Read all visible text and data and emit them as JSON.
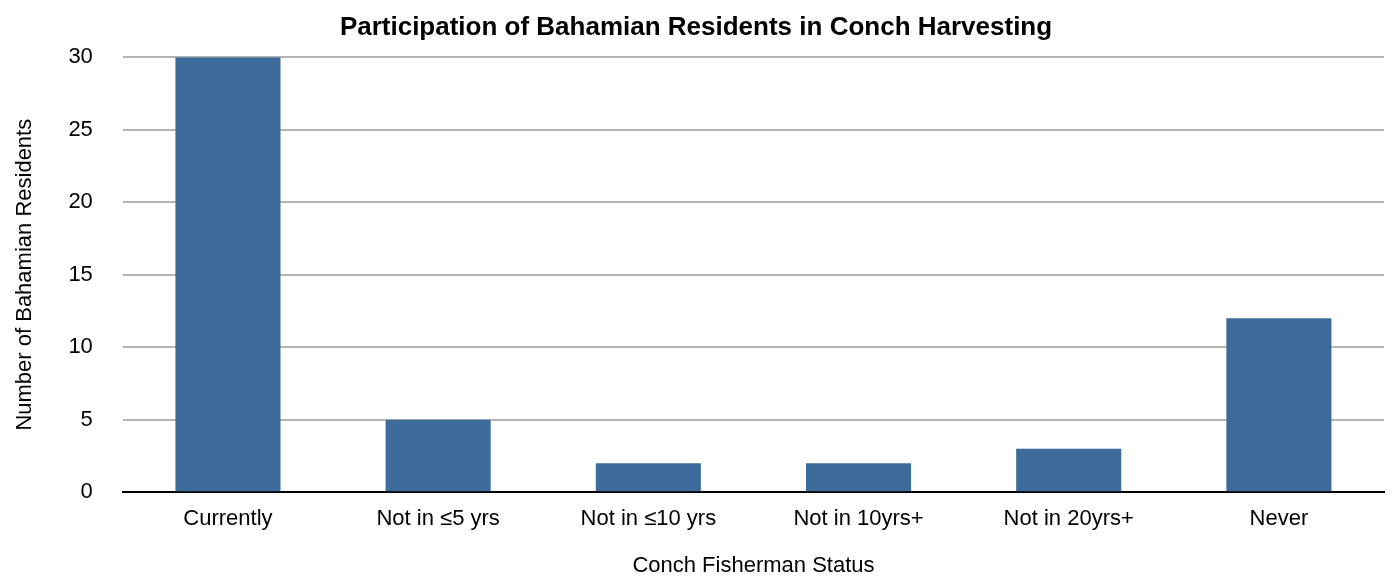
{
  "chart_data": {
    "type": "bar",
    "title": "Participation of Bahamian Residents in Conch Harvesting",
    "xlabel": "Conch Fisherman Status",
    "ylabel": "Number of Bahamian Residents",
    "categories": [
      "Currently",
      "Not in ≤5 yrs",
      "Not in ≤10 yrs",
      "Not in 10yrs+",
      "Not in 20yrs+",
      "Never"
    ],
    "values": [
      30,
      5,
      2,
      2,
      3,
      12
    ],
    "color": "#3d6b9b",
    "ylim": [
      0,
      30
    ],
    "yticks": [
      0,
      5,
      10,
      15,
      20,
      25,
      30
    ],
    "grid": "y",
    "legend": false
  }
}
